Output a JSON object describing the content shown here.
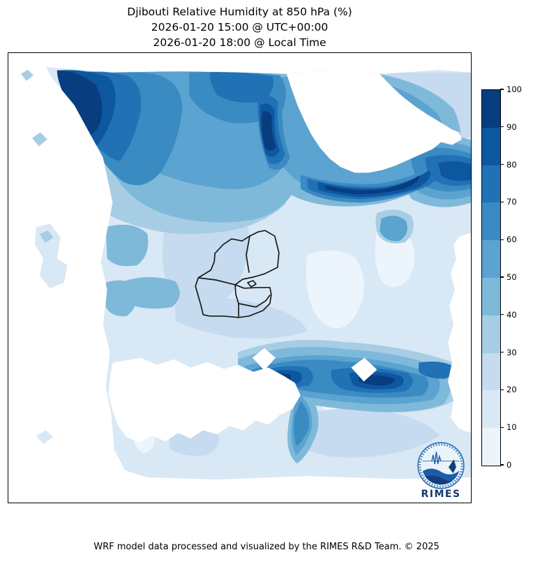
{
  "title": {
    "line1": "Djibouti Relative Humidity at 850 hPa (%)",
    "line2": "2026-01-20 15:00 @ UTC+00:00",
    "line3": "2026-01-20 18:00 @ Local Time"
  },
  "footer": {
    "credit": "WRF model data processed and visualized by the RIMES R&D Team. © 2025"
  },
  "logo": {
    "label": "RIMES"
  },
  "chart_data": {
    "type": "heatmap",
    "subtype": "filled-contour-map",
    "title": "Djibouti Relative Humidity at 850 hPa (%)",
    "timestamp_utc": "2026-01-20 15:00 @ UTC+00:00",
    "timestamp_local": "2026-01-20 18:00 @ Local Time",
    "variable": "Relative Humidity",
    "pressure_level": "850 hPa",
    "units": "%",
    "overlay": "Djibouti national and regional administrative boundaries",
    "masked_area_color": "#ffffff",
    "colorbar": {
      "min": 0,
      "max": 100,
      "step": 10,
      "tick_labels": [
        "0",
        "10",
        "20",
        "30",
        "40",
        "50",
        "60",
        "70",
        "80",
        "90",
        "100"
      ],
      "colors": [
        "#edf5fc",
        "#d9e8f5",
        "#c6dbef",
        "#a6cde4",
        "#7fb9da",
        "#5ba3d0",
        "#3b8bc3",
        "#2171b5",
        "#0d57a1",
        "#083d7f"
      ],
      "orientation": "vertical",
      "position": "right"
    },
    "approx_values_grid_pct": {
      "note": "Coarse 10x10 estimate read from fill colors, row-major top-to-bottom across the map axes; null = masked/no-data (white).",
      "values": [
        [
          null,
          85,
          65,
          55,
          50,
          null,
          null,
          25,
          15,
          15
        ],
        [
          null,
          75,
          60,
          55,
          65,
          90,
          null,
          25,
          35,
          45
        ],
        [
          null,
          null,
          50,
          45,
          55,
          80,
          95,
          55,
          35,
          65
        ],
        [
          null,
          null,
          45,
          30,
          30,
          25,
          40,
          30,
          15,
          null
        ],
        [
          null,
          null,
          40,
          25,
          20,
          15,
          10,
          25,
          15,
          null
        ],
        [
          null,
          null,
          30,
          25,
          15,
          15,
          10,
          5,
          15,
          null
        ],
        [
          null,
          null,
          15,
          15,
          25,
          45,
          25,
          30,
          55,
          45
        ],
        [
          null,
          null,
          10,
          null,
          null,
          70,
          95,
          55,
          85,
          35
        ],
        [
          null,
          5,
          10,
          null,
          15,
          40,
          35,
          25,
          25,
          25
        ],
        [
          null,
          null,
          5,
          10,
          15,
          15,
          null,
          15,
          25,
          null
        ]
      ]
    }
  }
}
